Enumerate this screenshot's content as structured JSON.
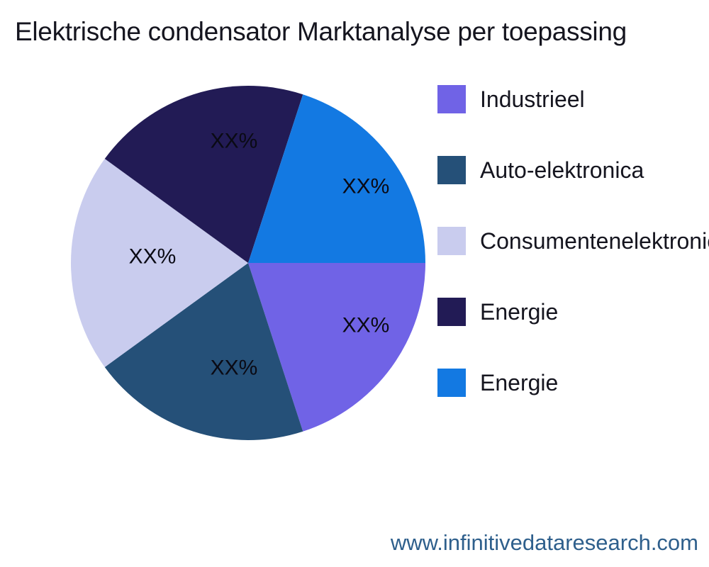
{
  "page": {
    "footer_url": "www.infinitivedataresearch.com"
  },
  "colors": {
    "background": "#ffffff",
    "title_text": "#15151f",
    "legend_text": "#15151f",
    "slice_label_text": "#0a0a14",
    "footer_link": "#2e5f8c"
  },
  "chart_data": {
    "type": "pie",
    "title": "Elektrische condensator Marktanalyse per toepassing",
    "note": "All five slices are visually equal (~20% / 72° each); percentage data labels are masked as 'XX%' in the source image.",
    "start_angle_deg": 0,
    "direction": "clockwise",
    "legend_position": "right",
    "slices": [
      {
        "label": "Industrieel",
        "value": 20,
        "display_value": "XX%",
        "color": "#7063e6"
      },
      {
        "label": "Auto-elektronica",
        "value": 20,
        "display_value": "XX%",
        "color": "#255078"
      },
      {
        "label": "Consumentenelektronica",
        "value": 20,
        "display_value": "XX%",
        "color": "#c9ccee"
      },
      {
        "label": "Energie",
        "value": 20,
        "display_value": "XX%",
        "color": "#221b55"
      },
      {
        "label": "Energie",
        "value": 20,
        "display_value": "XX%",
        "color": "#1379e2"
      }
    ]
  }
}
